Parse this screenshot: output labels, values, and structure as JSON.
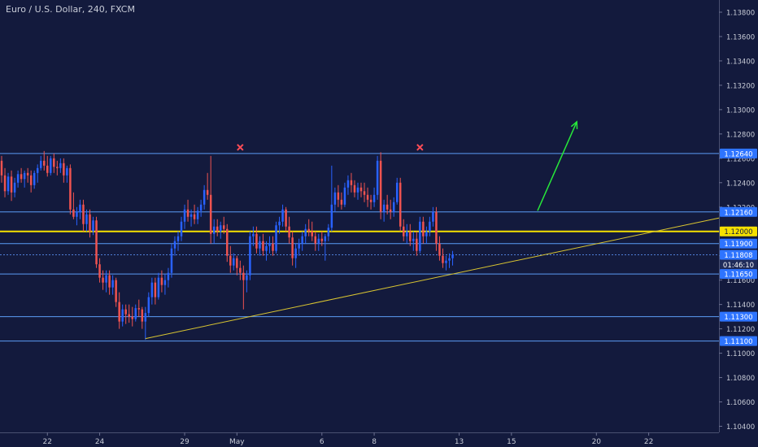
{
  "window": {
    "symbol_title": "Euro / U.S. Dollar, 240, FXCM"
  },
  "colors": {
    "background": "#131a3d",
    "up": "#2962ff",
    "down": "#ef5350",
    "hline": "#5b9cf6",
    "key_level": "#f5e100",
    "trendline": "#d9c531",
    "arrow": "#27e83a",
    "marker": "#ff4d57",
    "axis_text": "#c7cbd6",
    "label_bg": "#2e74ff"
  },
  "chart_data": {
    "type": "candlestick",
    "y_range": [
      1.1035,
      1.139
    ],
    "y_ticks": [
      "1.13800",
      "1.13600",
      "1.13400",
      "1.13200",
      "1.13000",
      "1.12800",
      "1.12600",
      "1.12400",
      "1.12200",
      "1.12000",
      "1.11800",
      "1.11600",
      "1.11400",
      "1.11200",
      "1.11000",
      "1.10800",
      "1.10600",
      "1.10400"
    ],
    "x_ticks": [
      {
        "label": "22",
        "bar": 14
      },
      {
        "label": "24",
        "bar": 30
      },
      {
        "label": "29",
        "bar": 56
      },
      {
        "label": "May",
        "bar": 72
      },
      {
        "label": "6",
        "bar": 98
      },
      {
        "label": "8",
        "bar": 114
      },
      {
        "label": "13",
        "bar": 140
      },
      {
        "label": "15",
        "bar": 156
      },
      {
        "label": "20",
        "bar": 182
      },
      {
        "label": "22",
        "bar": 198
      }
    ],
    "bar_count_axis": 220,
    "candles": [
      [
        1.1258,
        1.1262,
        1.124,
        1.1246
      ],
      [
        1.1246,
        1.1252,
        1.1228,
        1.1233
      ],
      [
        1.1233,
        1.1248,
        1.123,
        1.1245
      ],
      [
        1.1245,
        1.125,
        1.1225,
        1.1232
      ],
      [
        1.1232,
        1.1244,
        1.1228,
        1.124
      ],
      [
        1.124,
        1.125,
        1.1236,
        1.1247
      ],
      [
        1.1247,
        1.1252,
        1.124,
        1.1243
      ],
      [
        1.1243,
        1.125,
        1.1236,
        1.1248
      ],
      [
        1.1248,
        1.1252,
        1.124,
        1.1246
      ],
      [
        1.1246,
        1.125,
        1.1232,
        1.1238
      ],
      [
        1.1238,
        1.125,
        1.1235,
        1.1248
      ],
      [
        1.1248,
        1.1255,
        1.124,
        1.1252
      ],
      [
        1.1252,
        1.1262,
        1.125,
        1.1258
      ],
      [
        1.1258,
        1.1266,
        1.125,
        1.1254
      ],
      [
        1.1254,
        1.1262,
        1.1245,
        1.1248
      ],
      [
        1.1248,
        1.1262,
        1.1246,
        1.126
      ],
      [
        1.126,
        1.1264,
        1.1248,
        1.1253
      ],
      [
        1.1253,
        1.1258,
        1.1246,
        1.1252
      ],
      [
        1.1252,
        1.126,
        1.1248,
        1.1256
      ],
      [
        1.1256,
        1.126,
        1.124,
        1.1246
      ],
      [
        1.1246,
        1.1254,
        1.124,
        1.1252
      ],
      [
        1.1252,
        1.1255,
        1.1214,
        1.1218
      ],
      [
        1.1218,
        1.1232,
        1.121,
        1.1212
      ],
      [
        1.1212,
        1.122,
        1.1205,
        1.1216
      ],
      [
        1.1216,
        1.1226,
        1.121,
        1.1222
      ],
      [
        1.1222,
        1.1226,
        1.12,
        1.1206
      ],
      [
        1.1206,
        1.1218,
        1.12,
        1.1214
      ],
      [
        1.1214,
        1.1218,
        1.1195,
        1.12
      ],
      [
        1.12,
        1.1212,
        1.1197,
        1.1209
      ],
      [
        1.1209,
        1.1212,
        1.117,
        1.1173
      ],
      [
        1.1173,
        1.1178,
        1.1158,
        1.1162
      ],
      [
        1.1162,
        1.1168,
        1.1152,
        1.1158
      ],
      [
        1.1158,
        1.1168,
        1.115,
        1.1164
      ],
      [
        1.1164,
        1.1168,
        1.1148,
        1.1154
      ],
      [
        1.1154,
        1.1164,
        1.1148,
        1.116
      ],
      [
        1.116,
        1.1162,
        1.1138,
        1.1142
      ],
      [
        1.1142,
        1.115,
        1.112,
        1.1126
      ],
      [
        1.1126,
        1.114,
        1.1122,
        1.1136
      ],
      [
        1.1136,
        1.114,
        1.1124,
        1.1132
      ],
      [
        1.1132,
        1.114,
        1.1125,
        1.113
      ],
      [
        1.113,
        1.1138,
        1.1122,
        1.1128
      ],
      [
        1.1128,
        1.114,
        1.1126,
        1.1137
      ],
      [
        1.1137,
        1.1144,
        1.113,
        1.1136
      ],
      [
        1.1136,
        1.1138,
        1.112,
        1.1126
      ],
      [
        1.1126,
        1.1138,
        1.1111,
        1.1133
      ],
      [
        1.1133,
        1.115,
        1.113,
        1.1146
      ],
      [
        1.1146,
        1.1162,
        1.114,
        1.1158
      ],
      [
        1.1158,
        1.1162,
        1.114,
        1.1146
      ],
      [
        1.1146,
        1.1166,
        1.1144,
        1.1162
      ],
      [
        1.1162,
        1.1168,
        1.115,
        1.1156
      ],
      [
        1.1156,
        1.1165,
        1.1148,
        1.116
      ],
      [
        1.116,
        1.117,
        1.1154,
        1.1166
      ],
      [
        1.1166,
        1.119,
        1.1162,
        1.1186
      ],
      [
        1.1186,
        1.1196,
        1.118,
        1.1192
      ],
      [
        1.1192,
        1.12,
        1.1184,
        1.1196
      ],
      [
        1.1196,
        1.1212,
        1.1192,
        1.1208
      ],
      [
        1.1208,
        1.1222,
        1.1202,
        1.1218
      ],
      [
        1.1218,
        1.1226,
        1.1208,
        1.1212
      ],
      [
        1.1212,
        1.1218,
        1.1204,
        1.1214
      ],
      [
        1.1214,
        1.1222,
        1.1206,
        1.121
      ],
      [
        1.121,
        1.122,
        1.1206,
        1.1217
      ],
      [
        1.1217,
        1.1226,
        1.1212,
        1.1222
      ],
      [
        1.1222,
        1.1238,
        1.1218,
        1.1234
      ],
      [
        1.1234,
        1.1248,
        1.1226,
        1.123
      ],
      [
        1.123,
        1.1262,
        1.119,
        1.1198
      ],
      [
        1.1198,
        1.121,
        1.119,
        1.1204
      ],
      [
        1.1204,
        1.121,
        1.1196,
        1.12
      ],
      [
        1.12,
        1.1208,
        1.1194,
        1.1205
      ],
      [
        1.1205,
        1.1212,
        1.1198,
        1.1202
      ],
      [
        1.1202,
        1.1206,
        1.1175,
        1.118
      ],
      [
        1.118,
        1.1188,
        1.1166,
        1.1172
      ],
      [
        1.1172,
        1.1182,
        1.1168,
        1.1178
      ],
      [
        1.1178,
        1.118,
        1.1164,
        1.117
      ],
      [
        1.117,
        1.1176,
        1.116,
        1.1166
      ],
      [
        1.1166,
        1.1172,
        1.1136,
        1.116
      ],
      [
        1.116,
        1.1168,
        1.115,
        1.1164
      ],
      [
        1.1164,
        1.12,
        1.116,
        1.1196
      ],
      [
        1.1196,
        1.1204,
        1.1188,
        1.1198
      ],
      [
        1.1198,
        1.1204,
        1.1182,
        1.1186
      ],
      [
        1.1186,
        1.1196,
        1.118,
        1.1192
      ],
      [
        1.1192,
        1.1198,
        1.118,
        1.1184
      ],
      [
        1.1184,
        1.1192,
        1.1176,
        1.1188
      ],
      [
        1.1188,
        1.1196,
        1.1182,
        1.119
      ],
      [
        1.119,
        1.1196,
        1.118,
        1.1184
      ],
      [
        1.1184,
        1.1208,
        1.1182,
        1.1205
      ],
      [
        1.1205,
        1.1212,
        1.1198,
        1.1208
      ],
      [
        1.1208,
        1.1222,
        1.1204,
        1.1218
      ],
      [
        1.1218,
        1.122,
        1.12,
        1.1204
      ],
      [
        1.1204,
        1.1212,
        1.119,
        1.1195
      ],
      [
        1.1195,
        1.12,
        1.1172,
        1.1178
      ],
      [
        1.1178,
        1.119,
        1.117,
        1.1186
      ],
      [
        1.1186,
        1.1194,
        1.118,
        1.119
      ],
      [
        1.119,
        1.12,
        1.1184,
        1.1196
      ],
      [
        1.1196,
        1.1206,
        1.119,
        1.1202
      ],
      [
        1.1202,
        1.121,
        1.1196,
        1.12
      ],
      [
        1.12,
        1.1208,
        1.1192,
        1.1196
      ],
      [
        1.1196,
        1.12,
        1.1184,
        1.119
      ],
      [
        1.119,
        1.1198,
        1.1184,
        1.1194
      ],
      [
        1.1194,
        1.12,
        1.1188,
        1.1192
      ],
      [
        1.1192,
        1.1198,
        1.1176,
        1.1196
      ],
      [
        1.1196,
        1.1206,
        1.1192,
        1.1203
      ],
      [
        1.1203,
        1.1254,
        1.12,
        1.1222
      ],
      [
        1.1222,
        1.1236,
        1.1216,
        1.1232
      ],
      [
        1.1232,
        1.1238,
        1.122,
        1.1226
      ],
      [
        1.1226,
        1.1232,
        1.1218,
        1.1222
      ],
      [
        1.1222,
        1.124,
        1.122,
        1.1236
      ],
      [
        1.1236,
        1.1246,
        1.123,
        1.1242
      ],
      [
        1.1242,
        1.1248,
        1.1232,
        1.1238
      ],
      [
        1.1238,
        1.1242,
        1.1228,
        1.1232
      ],
      [
        1.1232,
        1.124,
        1.1226,
        1.1236
      ],
      [
        1.1236,
        1.124,
        1.1228,
        1.1233
      ],
      [
        1.1233,
        1.124,
        1.1224,
        1.123
      ],
      [
        1.123,
        1.1236,
        1.122,
        1.1226
      ],
      [
        1.1226,
        1.123,
        1.1218,
        1.1224
      ],
      [
        1.1224,
        1.1236,
        1.122,
        1.123
      ],
      [
        1.123,
        1.1262,
        1.1226,
        1.1258
      ],
      [
        1.1258,
        1.1265,
        1.121,
        1.1216
      ],
      [
        1.1216,
        1.1226,
        1.1208,
        1.1222
      ],
      [
        1.1222,
        1.123,
        1.1214,
        1.1218
      ],
      [
        1.1218,
        1.1226,
        1.121,
        1.1216
      ],
      [
        1.1216,
        1.1228,
        1.1212,
        1.1224
      ],
      [
        1.1224,
        1.1244,
        1.1222,
        1.124
      ],
      [
        1.124,
        1.1244,
        1.12,
        1.1204
      ],
      [
        1.1204,
        1.121,
        1.1192,
        1.1196
      ],
      [
        1.1196,
        1.1206,
        1.119,
        1.12
      ],
      [
        1.12,
        1.1206,
        1.1188,
        1.1192
      ],
      [
        1.1192,
        1.12,
        1.1184,
        1.1194
      ],
      [
        1.1194,
        1.12,
        1.118,
        1.1184
      ],
      [
        1.1184,
        1.1212,
        1.1182,
        1.1208
      ],
      [
        1.1208,
        1.1212,
        1.119,
        1.1196
      ],
      [
        1.1196,
        1.1204,
        1.119,
        1.12
      ],
      [
        1.12,
        1.1212,
        1.1196,
        1.1208
      ],
      [
        1.1208,
        1.122,
        1.1204,
        1.1216
      ],
      [
        1.1216,
        1.122,
        1.1184,
        1.119
      ],
      [
        1.119,
        1.1196,
        1.1176,
        1.118
      ],
      [
        1.118,
        1.1186,
        1.117,
        1.1174
      ],
      [
        1.1174,
        1.118,
        1.1168,
        1.1176
      ],
      [
        1.1176,
        1.1182,
        1.117,
        1.1178
      ],
      [
        1.1178,
        1.1184,
        1.1172,
        1.1181
      ]
    ],
    "horizontal_levels": [
      {
        "price": 1.1264,
        "label": "1.12640",
        "style": "blue"
      },
      {
        "price": 1.1216,
        "label": "1.12160",
        "style": "blue"
      },
      {
        "price": 1.12,
        "label": "1.12000",
        "style": "yellow"
      },
      {
        "price": 1.119,
        "label": "1.11900",
        "style": "blue"
      },
      {
        "price": 1.11808,
        "label": "1.11808",
        "style": "current"
      },
      {
        "price": 1.1165,
        "label": "1.11650",
        "style": "blue"
      },
      {
        "price": 1.113,
        "label": "1.11300",
        "style": "blue"
      },
      {
        "price": 1.111,
        "label": "1.11100",
        "style": "blue"
      }
    ],
    "countdown_label": "01:46:10",
    "trendline": {
      "from": [
        44,
        1.1112
      ],
      "to": [
        220,
        1.1211
      ]
    },
    "arrow": {
      "from": [
        164,
        1.1217
      ],
      "to": [
        176,
        1.129
      ]
    },
    "markers": [
      {
        "bar": 73,
        "price": 1.1269
      },
      {
        "bar": 128,
        "price": 1.1269
      }
    ]
  }
}
